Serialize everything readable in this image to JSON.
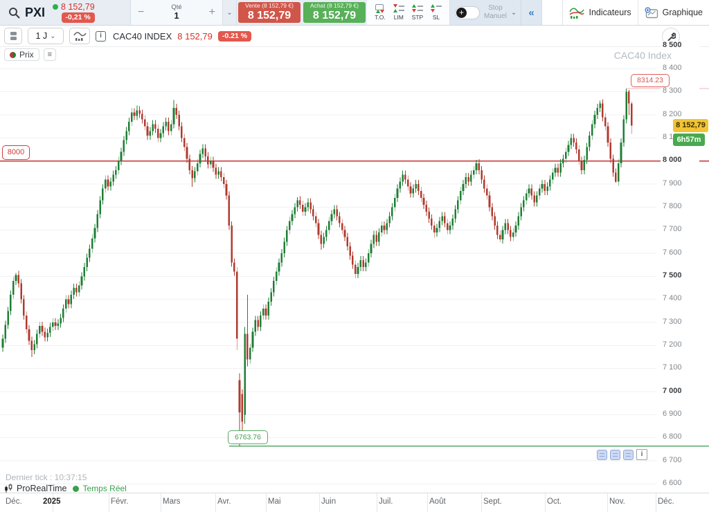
{
  "topbar": {
    "symbol": "PXI",
    "price": "8 152,79",
    "change": "-0,21 %",
    "qty": {
      "label": "Qté",
      "value": "1"
    },
    "sell": {
      "sub": "Vente (8 152,79 €)",
      "price": "8 152,79"
    },
    "buy": {
      "sub": "Achat (8 152,79 €)",
      "price": "8 152,79"
    },
    "order_types": [
      "T.O.",
      "LIM",
      "STP",
      "SL"
    ],
    "stop": {
      "line1": "Stop",
      "line2": "Manuel"
    },
    "collapse": "«",
    "indicators": "Indicateurs",
    "graph": "Graphique"
  },
  "toolbar": {
    "timeframe": "1 J",
    "instrument": "CAC40 INDEX",
    "price": "8 152,79",
    "change": "-0.21 %",
    "info_glyph": "i"
  },
  "legend": {
    "price": "Prix",
    "list_glyph": "≡"
  },
  "watermark": "CAC40 Index",
  "footer": {
    "last_tick": "Dernier tick : 10:37:15",
    "brand": "ProRealTime",
    "feed": "Temps Réel"
  },
  "chart_data": {
    "type": "candlestick",
    "instrument": "CAC40 Index",
    "timeframe": "1 day",
    "ylim": [
      6600,
      8500
    ],
    "y_step": 100,
    "grid": true,
    "up_color": "#1e7e34",
    "down_color": "#b03a2e",
    "levels": [
      {
        "value": 8314.23,
        "label": "8314.23",
        "color": "#f0b6b6",
        "role": "session-high"
      },
      {
        "value": 8000,
        "label": "8000",
        "color": "#c53030",
        "role": "horizontal-line"
      },
      {
        "value": 6763.76,
        "label": "6763.76",
        "color": "#5aa868",
        "role": "session-low"
      }
    ],
    "last": {
      "value": 8152.79,
      "badge": "8 152,79",
      "countdown": "6h57m"
    },
    "x_labels": [
      "Déc.",
      "2025",
      "Févr.",
      "Mars",
      "Avr.",
      "Mai",
      "Juin",
      "Juil.",
      "Août",
      "Sept.",
      "Oct.",
      "Nov.",
      "Déc."
    ],
    "candles": [
      [
        7190,
        7248,
        7172,
        7230
      ],
      [
        7230,
        7308,
        7212,
        7290
      ],
      [
        7290,
        7368,
        7272,
        7350
      ],
      [
        7350,
        7438,
        7332,
        7420
      ],
      [
        7420,
        7498,
        7402,
        7480
      ],
      [
        7480,
        7515,
        7462,
        7505
      ],
      [
        7505,
        7523,
        7452,
        7470
      ],
      [
        7470,
        7488,
        7382,
        7400
      ],
      [
        7400,
        7418,
        7312,
        7330
      ],
      [
        7330,
        7348,
        7252,
        7270
      ],
      [
        7270,
        7288,
        7202,
        7220
      ],
      [
        7220,
        7238,
        7150,
        7180
      ],
      [
        7180,
        7223,
        7162,
        7205
      ],
      [
        7205,
        7268,
        7187,
        7250
      ],
      [
        7250,
        7303,
        7232,
        7285
      ],
      [
        7285,
        7303,
        7242,
        7260
      ],
      [
        7260,
        7278,
        7217,
        7235
      ],
      [
        7235,
        7273,
        7217,
        7255
      ],
      [
        7255,
        7298,
        7237,
        7280
      ],
      [
        7280,
        7318,
        7262,
        7300
      ],
      [
        7300,
        7318,
        7267,
        7285
      ],
      [
        7285,
        7313,
        7267,
        7295
      ],
      [
        7295,
        7338,
        7277,
        7320
      ],
      [
        7320,
        7378,
        7302,
        7360
      ],
      [
        7360,
        7418,
        7342,
        7400
      ],
      [
        7400,
        7418,
        7362,
        7380
      ],
      [
        7380,
        7438,
        7362,
        7420
      ],
      [
        7420,
        7468,
        7402,
        7450
      ],
      [
        7450,
        7468,
        7412,
        7430
      ],
      [
        7430,
        7478,
        7412,
        7460
      ],
      [
        7460,
        7518,
        7442,
        7500
      ],
      [
        7500,
        7558,
        7482,
        7540
      ],
      [
        7540,
        7598,
        7522,
        7580
      ],
      [
        7580,
        7638,
        7562,
        7620
      ],
      [
        7620,
        7683,
        7602,
        7665
      ],
      [
        7665,
        7728,
        7647,
        7710
      ],
      [
        7710,
        7788,
        7692,
        7770
      ],
      [
        7770,
        7848,
        7752,
        7830
      ],
      [
        7830,
        7898,
        7812,
        7880
      ],
      [
        7880,
        7938,
        7862,
        7920
      ],
      [
        7920,
        7938,
        7872,
        7890
      ],
      [
        7890,
        7928,
        7872,
        7910
      ],
      [
        7910,
        7958,
        7892,
        7940
      ],
      [
        7940,
        7978,
        7922,
        7960
      ],
      [
        7960,
        8018,
        7942,
        8000
      ],
      [
        8000,
        8058,
        7982,
        8040
      ],
      [
        8040,
        8108,
        8022,
        8090
      ],
      [
        8090,
        8148,
        8072,
        8130
      ],
      [
        8130,
        8188,
        8112,
        8170
      ],
      [
        8170,
        8230,
        8152,
        8210
      ],
      [
        8210,
        8228,
        8177,
        8195
      ],
      [
        8195,
        8240,
        8177,
        8220
      ],
      [
        8220,
        8238,
        8187,
        8205
      ],
      [
        8205,
        8223,
        8162,
        8180
      ],
      [
        8180,
        8198,
        8132,
        8150
      ],
      [
        8150,
        8168,
        8092,
        8110
      ],
      [
        8110,
        8148,
        8092,
        8130
      ],
      [
        8130,
        8178,
        8112,
        8160
      ],
      [
        8160,
        8178,
        8122,
        8140
      ],
      [
        8140,
        8158,
        8082,
        8100
      ],
      [
        8100,
        8138,
        8082,
        8120
      ],
      [
        8120,
        8168,
        8102,
        8150
      ],
      [
        8150,
        8188,
        8132,
        8170
      ],
      [
        8170,
        8188,
        8112,
        8130
      ],
      [
        8130,
        8178,
        8112,
        8160
      ],
      [
        8160,
        8265,
        8142,
        8230
      ],
      [
        8230,
        8248,
        8182,
        8200
      ],
      [
        8200,
        8218,
        8132,
        8150
      ],
      [
        8150,
        8168,
        8082,
        8100
      ],
      [
        8100,
        8118,
        8042,
        8060
      ],
      [
        8060,
        8078,
        7992,
        8010
      ],
      [
        8010,
        8028,
        7942,
        7960
      ],
      [
        7960,
        7978,
        7888,
        7925
      ],
      [
        7925,
        7973,
        7907,
        7955
      ],
      [
        7955,
        8008,
        7937,
        7990
      ],
      [
        7990,
        8048,
        7972,
        8030
      ],
      [
        8030,
        8073,
        8012,
        8055
      ],
      [
        8055,
        8073,
        8002,
        8020
      ],
      [
        8020,
        8038,
        7967,
        7985
      ],
      [
        7985,
        8018,
        7967,
        8000
      ],
      [
        8000,
        8018,
        7952,
        7970
      ],
      [
        7970,
        7988,
        7922,
        7940
      ],
      [
        7940,
        7973,
        7922,
        7955
      ],
      [
        7955,
        7973,
        7912,
        7930
      ],
      [
        7930,
        7948,
        7882,
        7900
      ],
      [
        7900,
        7918,
        7832,
        7850
      ],
      [
        7850,
        7868,
        7702,
        7720
      ],
      [
        7720,
        7738,
        7542,
        7560
      ],
      [
        7560,
        7578,
        7502,
        7520
      ],
      [
        7520,
        7540,
        7180,
        7230
      ],
      [
        7050,
        7080,
        6764,
        6910
      ],
      [
        6990,
        7010,
        6800,
        6870
      ],
      [
        6900,
        7280,
        6860,
        7250
      ],
      [
        7250,
        7420,
        7110,
        7140
      ],
      [
        7140,
        7208,
        7122,
        7190
      ],
      [
        7190,
        7278,
        7172,
        7260
      ],
      [
        7260,
        7328,
        7242,
        7310
      ],
      [
        7310,
        7328,
        7262,
        7280
      ],
      [
        7280,
        7348,
        7262,
        7330
      ],
      [
        7330,
        7378,
        7312,
        7360
      ],
      [
        7360,
        7378,
        7312,
        7330
      ],
      [
        7330,
        7408,
        7312,
        7390
      ],
      [
        7390,
        7448,
        7372,
        7430
      ],
      [
        7430,
        7498,
        7412,
        7480
      ],
      [
        7480,
        7538,
        7462,
        7520
      ],
      [
        7520,
        7578,
        7502,
        7560
      ],
      [
        7560,
        7618,
        7542,
        7600
      ],
      [
        7600,
        7668,
        7582,
        7650
      ],
      [
        7650,
        7718,
        7632,
        7700
      ],
      [
        7700,
        7758,
        7682,
        7740
      ],
      [
        7740,
        7788,
        7722,
        7770
      ],
      [
        7770,
        7818,
        7752,
        7800
      ],
      [
        7800,
        7843,
        7782,
        7830
      ],
      [
        7830,
        7848,
        7792,
        7810
      ],
      [
        7810,
        7828,
        7762,
        7780
      ],
      [
        7780,
        7818,
        7762,
        7800
      ],
      [
        7800,
        7838,
        7782,
        7820
      ],
      [
        7820,
        7838,
        7772,
        7790
      ],
      [
        7790,
        7808,
        7742,
        7760
      ],
      [
        7760,
        7778,
        7712,
        7730
      ],
      [
        7730,
        7748,
        7662,
        7680
      ],
      [
        7680,
        7698,
        7615,
        7640
      ],
      [
        7640,
        7688,
        7622,
        7670
      ],
      [
        7670,
        7718,
        7652,
        7700
      ],
      [
        7700,
        7758,
        7682,
        7740
      ],
      [
        7740,
        7788,
        7722,
        7770
      ],
      [
        7770,
        7808,
        7752,
        7790
      ],
      [
        7790,
        7808,
        7742,
        7760
      ],
      [
        7760,
        7778,
        7712,
        7730
      ],
      [
        7730,
        7748,
        7682,
        7700
      ],
      [
        7700,
        7718,
        7652,
        7670
      ],
      [
        7670,
        7688,
        7612,
        7630
      ],
      [
        7630,
        7648,
        7572,
        7590
      ],
      [
        7590,
        7608,
        7532,
        7550
      ],
      [
        7550,
        7568,
        7490,
        7510
      ],
      [
        7510,
        7558,
        7492,
        7540
      ],
      [
        7540,
        7588,
        7522,
        7570
      ],
      [
        7570,
        7588,
        7522,
        7540
      ],
      [
        7540,
        7578,
        7522,
        7560
      ],
      [
        7560,
        7618,
        7542,
        7600
      ],
      [
        7600,
        7658,
        7582,
        7640
      ],
      [
        7640,
        7698,
        7622,
        7680
      ],
      [
        7680,
        7698,
        7632,
        7650
      ],
      [
        7650,
        7708,
        7632,
        7690
      ],
      [
        7690,
        7738,
        7672,
        7720
      ],
      [
        7720,
        7738,
        7682,
        7700
      ],
      [
        7700,
        7748,
        7682,
        7730
      ],
      [
        7730,
        7778,
        7712,
        7760
      ],
      [
        7760,
        7818,
        7742,
        7800
      ],
      [
        7800,
        7858,
        7782,
        7840
      ],
      [
        7840,
        7898,
        7822,
        7880
      ],
      [
        7880,
        7928,
        7862,
        7910
      ],
      [
        7910,
        7958,
        7892,
        7940
      ],
      [
        7940,
        7958,
        7902,
        7920
      ],
      [
        7920,
        7938,
        7872,
        7890
      ],
      [
        7890,
        7908,
        7842,
        7860
      ],
      [
        7860,
        7898,
        7842,
        7880
      ],
      [
        7880,
        7918,
        7862,
        7900
      ],
      [
        7900,
        7918,
        7852,
        7870
      ],
      [
        7870,
        7888,
        7822,
        7840
      ],
      [
        7840,
        7858,
        7792,
        7810
      ],
      [
        7810,
        7828,
        7762,
        7780
      ],
      [
        7780,
        7798,
        7732,
        7750
      ],
      [
        7750,
        7768,
        7702,
        7720
      ],
      [
        7720,
        7738,
        7668,
        7690
      ],
      [
        7690,
        7728,
        7672,
        7710
      ],
      [
        7710,
        7758,
        7692,
        7740
      ],
      [
        7740,
        7778,
        7722,
        7760
      ],
      [
        7760,
        7778,
        7712,
        7730
      ],
      [
        7730,
        7748,
        7682,
        7700
      ],
      [
        7700,
        7738,
        7682,
        7720
      ],
      [
        7720,
        7768,
        7702,
        7750
      ],
      [
        7750,
        7808,
        7732,
        7790
      ],
      [
        7790,
        7848,
        7772,
        7830
      ],
      [
        7830,
        7888,
        7812,
        7870
      ],
      [
        7870,
        7918,
        7852,
        7900
      ],
      [
        7900,
        7948,
        7882,
        7930
      ],
      [
        7930,
        7948,
        7892,
        7910
      ],
      [
        7910,
        7958,
        7892,
        7940
      ],
      [
        7940,
        7978,
        7922,
        7960
      ],
      [
        7960,
        8005,
        7942,
        7990
      ],
      [
        7990,
        8008,
        7942,
        7960
      ],
      [
        7960,
        7978,
        7902,
        7920
      ],
      [
        7920,
        7938,
        7862,
        7880
      ],
      [
        7880,
        7898,
        7832,
        7850
      ],
      [
        7850,
        7868,
        7782,
        7800
      ],
      [
        7800,
        7818,
        7742,
        7760
      ],
      [
        7760,
        7778,
        7702,
        7720
      ],
      [
        7720,
        7738,
        7662,
        7680
      ],
      [
        7680,
        7698,
        7648,
        7660
      ],
      [
        7660,
        7718,
        7642,
        7700
      ],
      [
        7700,
        7748,
        7682,
        7730
      ],
      [
        7730,
        7748,
        7682,
        7700
      ],
      [
        7700,
        7718,
        7652,
        7670
      ],
      [
        7670,
        7708,
        7652,
        7690
      ],
      [
        7690,
        7738,
        7672,
        7720
      ],
      [
        7720,
        7778,
        7702,
        7760
      ],
      [
        7760,
        7818,
        7742,
        7800
      ],
      [
        7800,
        7848,
        7782,
        7830
      ],
      [
        7830,
        7878,
        7812,
        7860
      ],
      [
        7860,
        7898,
        7842,
        7880
      ],
      [
        7880,
        7898,
        7832,
        7850
      ],
      [
        7850,
        7868,
        7802,
        7820
      ],
      [
        7820,
        7868,
        7802,
        7850
      ],
      [
        7850,
        7898,
        7832,
        7880
      ],
      [
        7880,
        7918,
        7862,
        7900
      ],
      [
        7900,
        7918,
        7852,
        7870
      ],
      [
        7870,
        7908,
        7852,
        7890
      ],
      [
        7890,
        7938,
        7872,
        7920
      ],
      [
        7920,
        7968,
        7902,
        7950
      ],
      [
        7950,
        7988,
        7932,
        7970
      ],
      [
        7970,
        7988,
        7932,
        7950
      ],
      [
        7950,
        8008,
        7932,
        7990
      ],
      [
        7990,
        8028,
        7972,
        8010
      ],
      [
        8010,
        8058,
        7992,
        8040
      ],
      [
        8040,
        8088,
        8022,
        8070
      ],
      [
        8070,
        8118,
        8052,
        8100
      ],
      [
        8100,
        8118,
        8062,
        8080
      ],
      [
        8080,
        8098,
        8032,
        8050
      ],
      [
        8050,
        8068,
        7982,
        8000
      ],
      [
        8000,
        8018,
        7942,
        7960
      ],
      [
        7960,
        8023,
        7942,
        8005
      ],
      [
        8005,
        8078,
        7987,
        8060
      ],
      [
        8060,
        8128,
        8042,
        8110
      ],
      [
        8110,
        8178,
        8092,
        8160
      ],
      [
        8160,
        8218,
        8142,
        8200
      ],
      [
        8200,
        8248,
        8182,
        8230
      ],
      [
        8230,
        8262,
        8212,
        8250
      ],
      [
        8250,
        8268,
        8172,
        8190
      ],
      [
        8190,
        8208,
        8132,
        8150
      ],
      [
        8150,
        8168,
        8062,
        8080
      ],
      [
        8080,
        8098,
        7992,
        8010
      ],
      [
        8010,
        8028,
        7932,
        7950
      ],
      [
        7950,
        7968,
        7906,
        7910
      ],
      [
        7910,
        8008,
        7892,
        7990
      ],
      [
        7990,
        8098,
        7972,
        8080
      ],
      [
        8080,
        8198,
        8062,
        8180
      ],
      [
        8180,
        8314,
        8162,
        8300
      ],
      [
        8300,
        8308,
        8198,
        8250
      ],
      [
        8250,
        8258,
        8118,
        8153
      ]
    ]
  }
}
